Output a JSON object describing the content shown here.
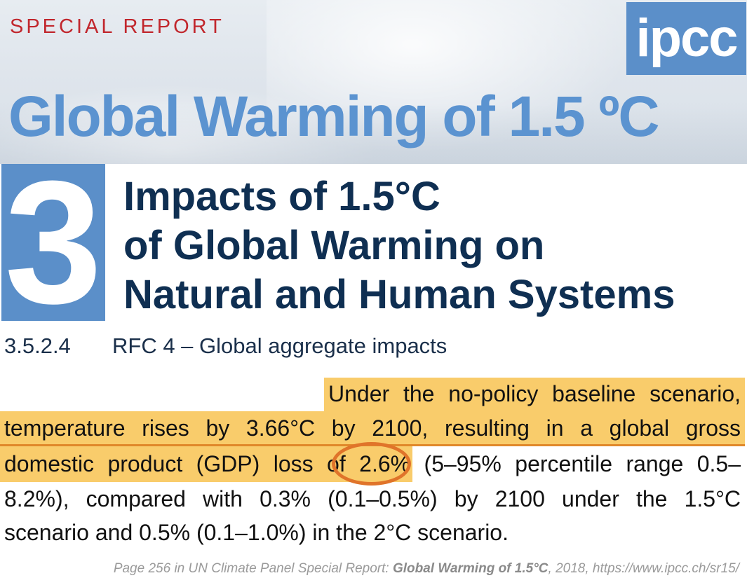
{
  "header": {
    "label": "SPECIAL REPORT",
    "logo_text": "ipcc",
    "report_title": "Global Warming of 1.5 ºC"
  },
  "chapter": {
    "number": "3",
    "title_lines": [
      "Impacts of 1.5°C",
      "of Global Warming on",
      "Natural and Human Systems"
    ]
  },
  "section": {
    "number": "3.5.2.4",
    "title": "RFC 4 – Global aggregate impacts"
  },
  "paragraph": {
    "lines": [
      "Under the no-policy baseline scenario,",
      "temperature rises by 3.66°C by 2100, resulting in a global gross",
      "domestic product (GDP) loss of 2.6% (5–95% percentile range 0.5–",
      "8.2%), compared with 0.3% (0.1–0.5%) by 2100 under the 1.5°C",
      "scenario and 0.5% (0.1–1.0%) in the 2°C scenario."
    ],
    "circled_value": "2.6%"
  },
  "footer": {
    "prefix": "Page 256 in UN Climate Panel Special Report: ",
    "bold_title": "Global Warming of 1.5°C",
    "suffix": ", 2018, https://www.ipcc.ch/sr15/"
  },
  "colors": {
    "accent_blue": "#5b8fc9",
    "title_navy": "#0f2f52",
    "highlight": "#f9cc6b",
    "circle": "#e0742a",
    "special_red": "#c1272d"
  }
}
